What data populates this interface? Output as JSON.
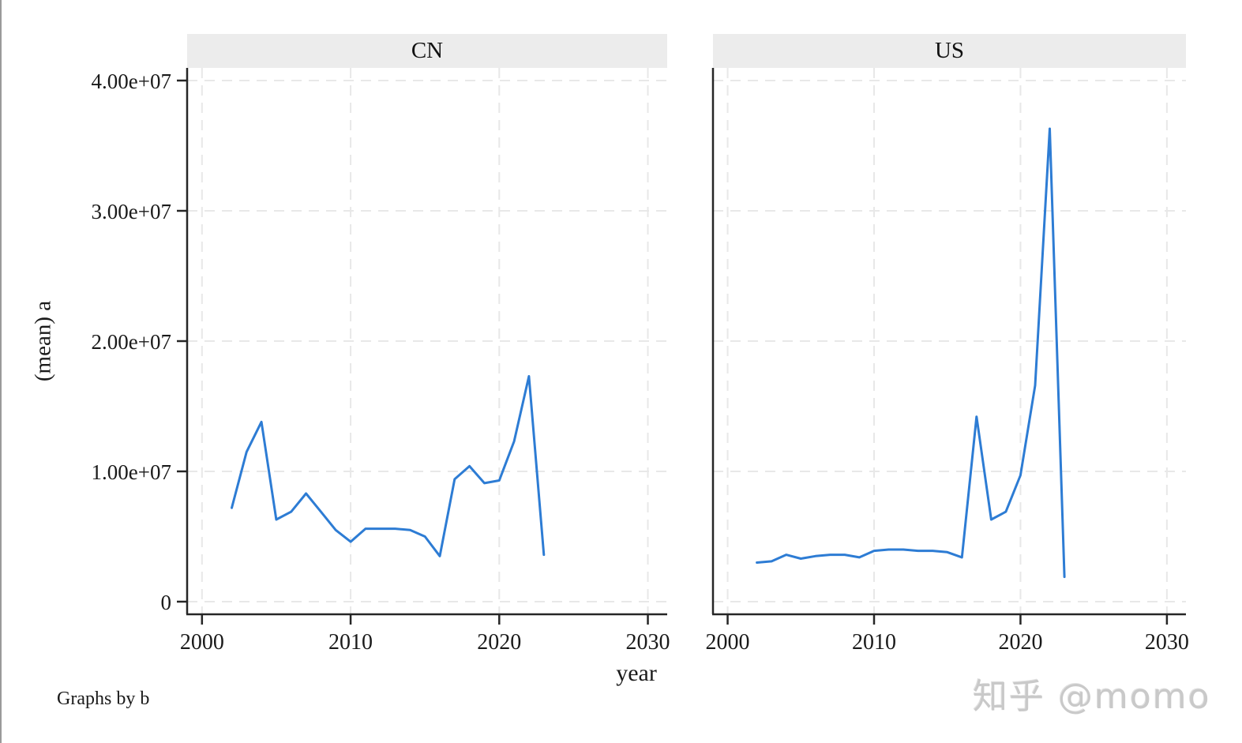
{
  "figure": {
    "y_axis_title": "(mean) a",
    "x_axis_title": "year",
    "note": "Graphs by b",
    "watermark": "知乎 @momo"
  },
  "colors": {
    "line": "#2d7cd4",
    "grid": "#e8e8e8",
    "axis": "#262626",
    "header_bg": "#ececec",
    "text": "#1a1a1a",
    "watermark": "#c9c9c9",
    "left_edge": "#9a9a9a"
  },
  "chart_data": {
    "type": "line",
    "title": "",
    "by_variable": "b",
    "xlabel": "year",
    "ylabel": "(mean) a",
    "xlim": [
      1999,
      2031.3
    ],
    "ylim": [
      0,
      40000000
    ],
    "grid": true,
    "legend": "none",
    "x_ticks": [
      2000,
      2010,
      2020,
      2030
    ],
    "x_tick_labels": [
      "2000",
      "2010",
      "2020",
      "2030"
    ],
    "y_ticks": [
      0,
      10000000,
      20000000,
      30000000,
      40000000
    ],
    "y_tick_labels": [
      "0",
      "1.00e+07",
      "2.00e+07",
      "3.00e+07",
      "4.00e+07"
    ],
    "x": [
      2002,
      2003,
      2004,
      2005,
      2006,
      2007,
      2008,
      2009,
      2010,
      2011,
      2012,
      2013,
      2014,
      2015,
      2016,
      2017,
      2018,
      2019,
      2020,
      2021,
      2022,
      2023
    ],
    "panels": [
      {
        "label": "CN",
        "values": [
          7200000,
          11500000,
          13800000,
          6300000,
          6900000,
          8300000,
          6900000,
          5500000,
          4600000,
          5600000,
          5600000,
          5600000,
          5500000,
          5000000,
          3500000,
          9400000,
          10400000,
          9100000,
          9300000,
          12300000,
          17300000,
          3600000
        ]
      },
      {
        "label": "US",
        "values": [
          3000000,
          3100000,
          3600000,
          3300000,
          3500000,
          3600000,
          3600000,
          3400000,
          3900000,
          4000000,
          4000000,
          3900000,
          3900000,
          3800000,
          3400000,
          14200000,
          6300000,
          6900000,
          9700000,
          16600000,
          36300000,
          1900000
        ]
      }
    ]
  }
}
